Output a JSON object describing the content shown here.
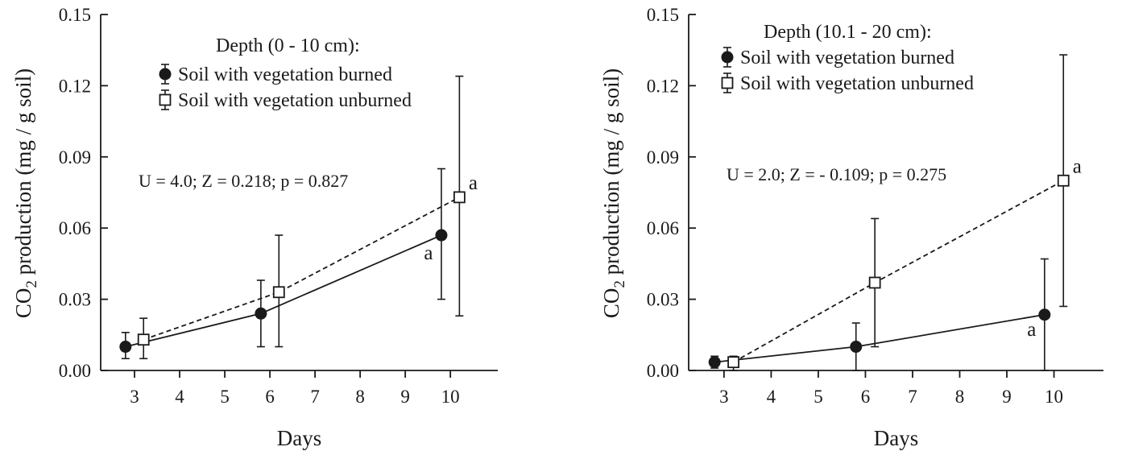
{
  "chart_data": [
    {
      "type": "line",
      "legend_title": "Depth (0 - 10 cm):",
      "legend_placement": "top-center",
      "xlabel": "Days",
      "ylabel_prefix": "CO",
      "ylabel_sub": "2",
      "ylabel_suffix": " production (mg / g soil)",
      "x_ticks": [
        "3",
        "4",
        "5",
        "6",
        "7",
        "8",
        "9",
        "10"
      ],
      "y_ticks": [
        "0.00",
        "0.03",
        "0.06",
        "0.09",
        "0.12",
        "0.15"
      ],
      "ylim": [
        0,
        0.15
      ],
      "xlim": [
        2.25,
        11.05
      ],
      "grid": false,
      "annotation": "U = 4.0; Z = 0.218; p = 0.827",
      "series": [
        {
          "name": "Soil with vegetation burned",
          "marker": "filled-circle",
          "line": "solid",
          "x": [
            2.8,
            5.8,
            9.8
          ],
          "y": [
            0.01,
            0.024,
            0.057
          ],
          "y_low": [
            0.005,
            0.01,
            0.03
          ],
          "y_high": [
            0.016,
            0.038,
            0.085
          ],
          "point_labels": [
            "",
            "",
            "a"
          ]
        },
        {
          "name": "Soil with vegetation unburned",
          "marker": "open-square",
          "line": "dashed",
          "x": [
            3.2,
            6.2,
            10.2
          ],
          "y": [
            0.013,
            0.033,
            0.073
          ],
          "y_low": [
            0.005,
            0.01,
            0.023
          ],
          "y_high": [
            0.022,
            0.057,
            0.124
          ],
          "point_labels": [
            "",
            "",
            "a"
          ]
        }
      ]
    },
    {
      "type": "line",
      "legend_title": "Depth (10.1 - 20 cm):",
      "legend_placement": "top-center",
      "xlabel": "Days",
      "ylabel_prefix": "CO",
      "ylabel_sub": "2",
      "ylabel_suffix": " production (mg / g soil)",
      "x_ticks": [
        "3",
        "4",
        "5",
        "6",
        "7",
        "8",
        "9",
        "10"
      ],
      "y_ticks": [
        "0.00",
        "0.03",
        "0.06",
        "0.09",
        "0.12",
        "0.15"
      ],
      "ylim": [
        0,
        0.15
      ],
      "xlim": [
        2.25,
        11.05
      ],
      "grid": false,
      "annotation": "U = 2.0; Z = - 0.109; p = 0.275",
      "series": [
        {
          "name": "Soil with vegetation burned",
          "marker": "filled-circle",
          "line": "solid",
          "x": [
            2.8,
            5.8,
            9.8
          ],
          "y": [
            0.0035,
            0.01,
            0.0235
          ],
          "y_low": [
            0.001,
            0.0,
            0.0
          ],
          "y_high": [
            0.006,
            0.02,
            0.047
          ],
          "point_labels": [
            "",
            "",
            "a"
          ]
        },
        {
          "name": "Soil with vegetation unburned",
          "marker": "open-square",
          "line": "dashed",
          "x": [
            3.2,
            6.2,
            10.2
          ],
          "y": [
            0.0035,
            0.037,
            0.08
          ],
          "y_low": [
            0.0,
            0.01,
            0.027
          ],
          "y_high": [
            0.006,
            0.064,
            0.133
          ],
          "point_labels": [
            "",
            "",
            "a"
          ]
        }
      ]
    }
  ]
}
